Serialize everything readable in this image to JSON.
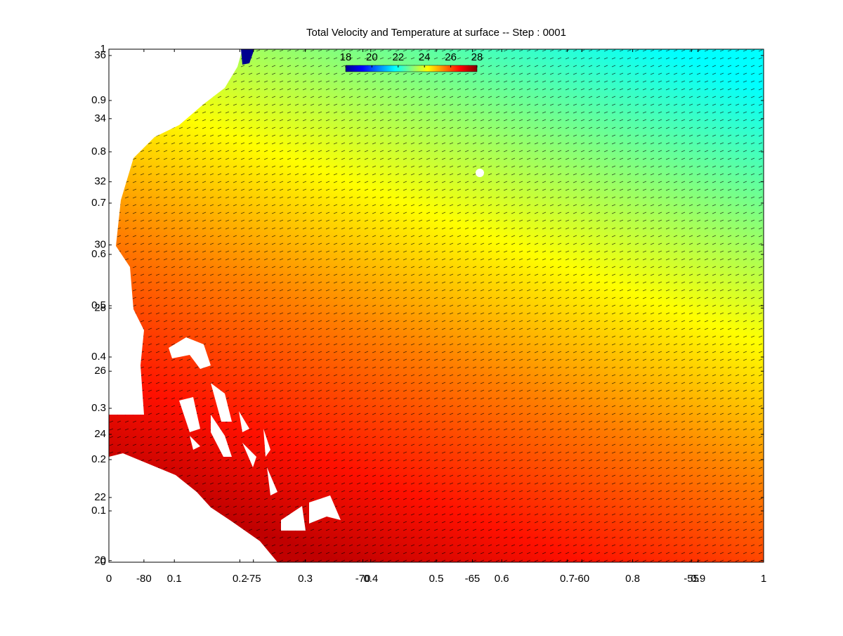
{
  "chart_data": [
    {
      "type": "heatmap",
      "title": "Total Velocity and Temperature at surface -- Step : 0001",
      "xlim": [
        -81.6,
        -51.7
      ],
      "ylim": [
        19.95,
        36.2
      ],
      "xticks": [
        -80,
        -75,
        -70,
        -65,
        -60,
        -55
      ],
      "yticks": [
        20,
        22,
        24,
        26,
        28,
        30,
        32,
        34,
        36
      ],
      "colorbar": {
        "lim": [
          18,
          28
        ],
        "ticks": [
          18,
          20,
          22,
          24,
          26,
          28
        ],
        "colormap": [
          "#00008f",
          "#0000ff",
          "#0080ff",
          "#00ffff",
          "#80ff80",
          "#ffff00",
          "#ff8000",
          "#ff0000",
          "#800000"
        ]
      }
    },
    {
      "type": "axes",
      "xlim": [
        0,
        1
      ],
      "ylim": [
        0,
        1
      ],
      "xticks": [
        0,
        0.1,
        0.2,
        0.3,
        0.4,
        0.5,
        0.6,
        0.7,
        0.8,
        0.9,
        1
      ],
      "yticks": [
        0,
        0.1,
        0.2,
        0.3,
        0.4,
        0.5,
        0.6,
        0.7,
        0.8,
        0.9,
        1
      ]
    }
  ]
}
